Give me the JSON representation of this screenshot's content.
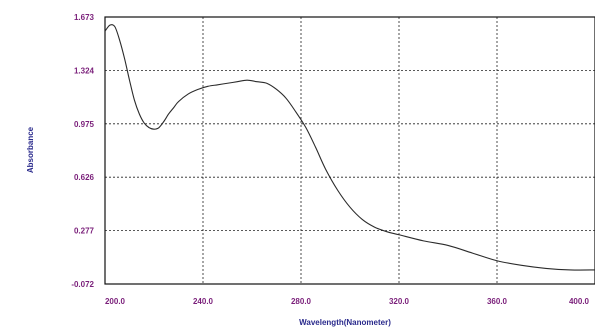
{
  "chart_data": {
    "type": "line",
    "title": "",
    "xlabel": "Wavelength(Nanometer)",
    "ylabel": "Absorbance",
    "xlim": [
      200.0,
      400.0
    ],
    "ylim": [
      -0.072,
      1.673
    ],
    "grid": true,
    "x_ticks": [
      "200.0",
      "240.0",
      "280.0",
      "320.0",
      "360.0",
      "400.0"
    ],
    "y_ticks": [
      "1.673",
      "1.324",
      "0.975",
      "0.626",
      "0.277",
      "-0.072"
    ],
    "series": [
      {
        "x": [
          200,
          202,
          204,
          206,
          208,
          210,
          212,
          214,
          216,
          218,
          220,
          222,
          224,
          226,
          228,
          230,
          234,
          238,
          242,
          246,
          250,
          254,
          258,
          262,
          266,
          270,
          274,
          278,
          282,
          286,
          290,
          295,
          300,
          305,
          310,
          315,
          320,
          330,
          340,
          350,
          360,
          370,
          380,
          390,
          400
        ],
        "y": [
          1.58,
          1.62,
          1.61,
          1.52,
          1.4,
          1.26,
          1.13,
          1.04,
          0.98,
          0.95,
          0.94,
          0.95,
          0.99,
          1.04,
          1.08,
          1.12,
          1.17,
          1.2,
          1.22,
          1.23,
          1.24,
          1.25,
          1.26,
          1.25,
          1.24,
          1.2,
          1.14,
          1.05,
          0.95,
          0.82,
          0.68,
          0.54,
          0.43,
          0.35,
          0.3,
          0.27,
          0.25,
          0.21,
          0.18,
          0.13,
          0.08,
          0.05,
          0.03,
          0.02,
          0.02
        ]
      }
    ]
  }
}
